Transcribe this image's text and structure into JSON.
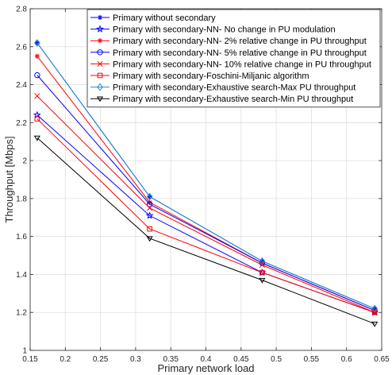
{
  "chart_data": {
    "type": "line",
    "title": "",
    "xlabel": "Primary network load",
    "ylabel": "Throughput [Mbps]",
    "xlim": [
      0.15,
      0.65
    ],
    "ylim": [
      1.0,
      2.8
    ],
    "xticks": [
      0.15,
      0.2,
      0.25,
      0.3,
      0.35,
      0.4,
      0.45,
      0.5,
      0.55,
      0.6,
      0.65
    ],
    "xtick_labels": [
      "0.15",
      "0.2",
      "0.25",
      "0.3",
      "0.35",
      "0.4",
      "0.45",
      "0.5",
      "0.55",
      "0.6",
      "0.65"
    ],
    "yticks": [
      1.0,
      1.2,
      1.4,
      1.6,
      1.8,
      2.0,
      2.2,
      2.4,
      2.6,
      2.8
    ],
    "ytick_labels": [
      "1",
      "1.2",
      "1.4",
      "1.6",
      "1.8",
      "2",
      "2.2",
      "2.4",
      "2.6",
      "2.8"
    ],
    "grid": true,
    "legend_position": "top-right",
    "x": [
      0.16,
      0.32,
      0.48,
      0.64
    ],
    "series": [
      {
        "name": "Primary without secondary",
        "color": "#0000ff",
        "marker": "asterisk",
        "values": [
          2.62,
          1.81,
          1.47,
          1.22
        ]
      },
      {
        "name": "Primary with secondary-NN- No change in PU modulation",
        "color": "#0000ff",
        "marker": "star",
        "values": [
          2.24,
          1.71,
          1.41,
          1.2
        ]
      },
      {
        "name": "Primary with secondary-NN- 2% relative change in PU throughput",
        "color": "#ff0000",
        "marker": "asterisk",
        "values": [
          2.55,
          1.78,
          1.46,
          1.21
        ]
      },
      {
        "name": "Primary with secondary-NN- 5% relative change in PU throughput",
        "color": "#0000ff",
        "marker": "circle",
        "values": [
          2.45,
          1.77,
          1.46,
          1.21
        ]
      },
      {
        "name": "Primary with secondary-NN- 10% relative change in PU throughput",
        "color": "#ff0000",
        "marker": "x",
        "values": [
          2.34,
          1.75,
          1.45,
          1.2
        ]
      },
      {
        "name": "Primary with secondary-Foschini-Miljanic algorithm",
        "color": "#ff0000",
        "marker": "square",
        "values": [
          2.22,
          1.64,
          1.41,
          1.2
        ]
      },
      {
        "name": "Primary with secondary-Exhaustive search-Max PU throughput",
        "color": "#1e8fc8",
        "marker": "diamond",
        "values": [
          2.62,
          1.81,
          1.47,
          1.22
        ]
      },
      {
        "name": "Primary with secondary-Exhaustive search-Min PU throughput",
        "color": "#000000",
        "marker": "triangle-down",
        "values": [
          2.12,
          1.59,
          1.37,
          1.14
        ]
      }
    ]
  }
}
